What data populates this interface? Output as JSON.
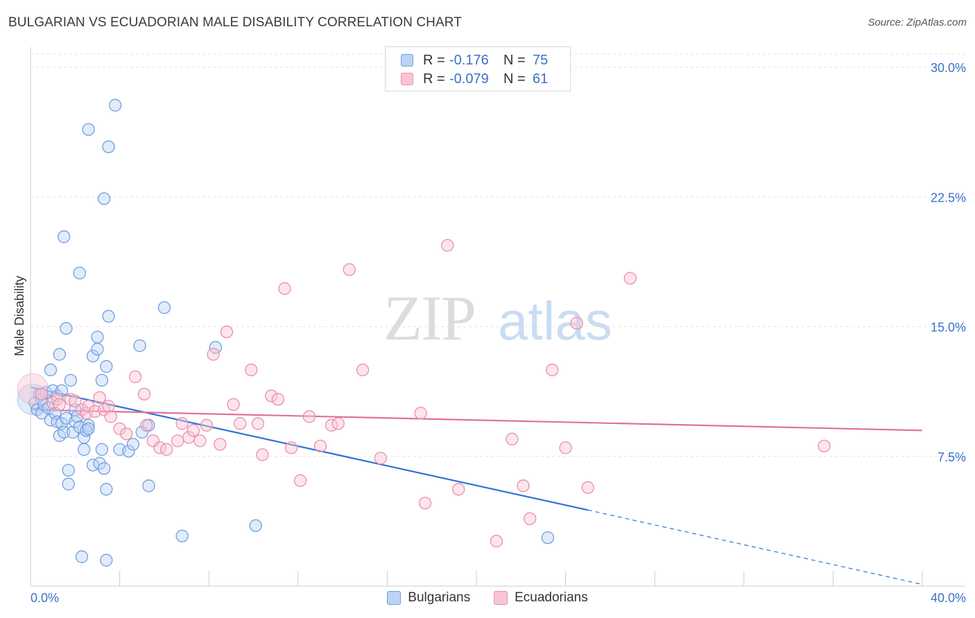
{
  "title": "BULGARIAN VS ECUADORIAN MALE DISABILITY CORRELATION CHART",
  "source": "Source: ZipAtlas.com",
  "watermark": {
    "part1": "ZIP",
    "part2": "atlas"
  },
  "legend_top": [
    {
      "r_label": "R =",
      "r_value": "-0.176",
      "n_label": "N =",
      "n_value": "75",
      "fill": "#bcd3f5",
      "stroke": "#6f9fe0"
    },
    {
      "r_label": "R =",
      "r_value": "-0.079",
      "n_label": "N =",
      "n_value": "61",
      "fill": "#f8c5d5",
      "stroke": "#ea8dab"
    }
  ],
  "legend_bottom": [
    {
      "label": "Bulgarians",
      "fill": "#bcd3f5",
      "stroke": "#6f9fe0"
    },
    {
      "label": "Ecuadorians",
      "fill": "#f8c5d5",
      "stroke": "#ea8dab"
    }
  ],
  "chart_data": {
    "type": "scatter",
    "title": "BULGARIAN VS ECUADORIAN MALE DISABILITY CORRELATION CHART",
    "xlabel": "",
    "ylabel": "Male Disability",
    "xlim": [
      0,
      40
    ],
    "ylim": [
      0,
      30
    ],
    "x_tick_labels": [
      {
        "value": 0,
        "label": "0.0%"
      },
      {
        "value": 40,
        "label": "40.0%"
      }
    ],
    "y_ticks": [
      {
        "value": 7.5,
        "label": "7.5%"
      },
      {
        "value": 15,
        "label": "15.0%"
      },
      {
        "value": 22.5,
        "label": "22.5%"
      },
      {
        "value": 30,
        "label": "30.0%"
      }
    ],
    "x_minor_ticks": [
      4,
      8,
      12,
      16,
      20,
      24,
      28,
      32,
      36,
      40
    ],
    "grid": true,
    "legend_placement": "top-center",
    "series": [
      {
        "name": "Bulgarians",
        "color": "#6f9fe0",
        "fill": "#bcd3f5",
        "line_color": "#2f73d4",
        "trend": {
          "x0": 0,
          "y0": 11.5,
          "x1": 25,
          "y1": 4.4,
          "dash_x1": 40,
          "dash_y1": 0.1
        },
        "points": [
          [
            0.2,
            10.6
          ],
          [
            0.3,
            10.2
          ],
          [
            0.4,
            11.1
          ],
          [
            0.5,
            10.0
          ],
          [
            0.5,
            10.8
          ],
          [
            0.6,
            10.5
          ],
          [
            0.7,
            11.2
          ],
          [
            0.8,
            10.3
          ],
          [
            0.9,
            9.6
          ],
          [
            0.9,
            12.5
          ],
          [
            1.0,
            11.3
          ],
          [
            1.1,
            10.0
          ],
          [
            1.2,
            9.5
          ],
          [
            1.2,
            11.0
          ],
          [
            1.3,
            8.7
          ],
          [
            1.4,
            9.4
          ],
          [
            1.3,
            13.4
          ],
          [
            1.4,
            11.3
          ],
          [
            1.5,
            8.9
          ],
          [
            1.5,
            20.2
          ],
          [
            1.6,
            14.9
          ],
          [
            1.6,
            9.7
          ],
          [
            1.7,
            5.9
          ],
          [
            1.7,
            6.7
          ],
          [
            1.8,
            11.9
          ],
          [
            1.9,
            8.9
          ],
          [
            2.0,
            10.2
          ],
          [
            2.0,
            9.5
          ],
          [
            2.1,
            9.8
          ],
          [
            2.2,
            18.1
          ],
          [
            2.2,
            9.2
          ],
          [
            2.3,
            1.7
          ],
          [
            2.4,
            7.9
          ],
          [
            2.4,
            8.6
          ],
          [
            2.5,
            9.0
          ],
          [
            2.6,
            9.3
          ],
          [
            2.5,
            9.0
          ],
          [
            2.6,
            26.4
          ],
          [
            2.6,
            9.1
          ],
          [
            2.8,
            13.3
          ],
          [
            2.8,
            7.0
          ],
          [
            3.0,
            13.7
          ],
          [
            3.1,
            7.1
          ],
          [
            3.0,
            14.4
          ],
          [
            3.2,
            11.9
          ],
          [
            3.2,
            7.9
          ],
          [
            3.3,
            6.8
          ],
          [
            3.3,
            22.4
          ],
          [
            3.4,
            12.7
          ],
          [
            3.4,
            5.6
          ],
          [
            3.4,
            1.5
          ],
          [
            3.5,
            25.4
          ],
          [
            3.5,
            15.6
          ],
          [
            3.8,
            27.8
          ],
          [
            4.0,
            7.9
          ],
          [
            4.4,
            7.8
          ],
          [
            4.6,
            8.2
          ],
          [
            4.9,
            13.9
          ],
          [
            5.0,
            8.9
          ],
          [
            5.3,
            9.3
          ],
          [
            5.3,
            5.8
          ],
          [
            6.0,
            16.1
          ],
          [
            6.8,
            2.9
          ],
          [
            8.3,
            13.8
          ],
          [
            10.1,
            3.5
          ],
          [
            23.2,
            2.8
          ]
        ],
        "large_points": [
          [
            0.1,
            10.8
          ]
        ]
      },
      {
        "name": "Ecuadorians",
        "color": "#ea8dab",
        "fill": "#f8c5d5",
        "line_color": "#e0709a",
        "trend": {
          "x0": 0,
          "y0": 10.2,
          "x1": 40,
          "y1": 9.0
        },
        "points": [
          [
            0.5,
            11.1
          ],
          [
            1.0,
            10.6
          ],
          [
            1.2,
            10.8
          ],
          [
            1.3,
            10.5
          ],
          [
            1.8,
            10.8
          ],
          [
            2.0,
            10.7
          ],
          [
            2.3,
            10.2
          ],
          [
            2.5,
            10.0
          ],
          [
            2.6,
            10.4
          ],
          [
            2.9,
            10.1
          ],
          [
            3.1,
            10.9
          ],
          [
            3.3,
            10.2
          ],
          [
            3.5,
            10.4
          ],
          [
            3.6,
            9.8
          ],
          [
            4.0,
            9.1
          ],
          [
            4.3,
            8.8
          ],
          [
            4.7,
            12.1
          ],
          [
            5.1,
            11.1
          ],
          [
            5.2,
            9.3
          ],
          [
            5.5,
            8.4
          ],
          [
            5.8,
            8.0
          ],
          [
            6.1,
            7.9
          ],
          [
            6.6,
            8.4
          ],
          [
            6.8,
            9.4
          ],
          [
            7.1,
            8.6
          ],
          [
            7.3,
            9.0
          ],
          [
            7.6,
            8.4
          ],
          [
            7.9,
            9.3
          ],
          [
            8.2,
            13.4
          ],
          [
            8.5,
            8.2
          ],
          [
            8.8,
            14.7
          ],
          [
            9.1,
            10.5
          ],
          [
            9.4,
            9.4
          ],
          [
            9.9,
            12.5
          ],
          [
            10.2,
            9.4
          ],
          [
            10.4,
            7.6
          ],
          [
            10.8,
            11.0
          ],
          [
            11.1,
            10.8
          ],
          [
            11.4,
            17.2
          ],
          [
            11.7,
            8.0
          ],
          [
            12.1,
            6.1
          ],
          [
            12.5,
            9.8
          ],
          [
            13.0,
            8.1
          ],
          [
            13.5,
            9.3
          ],
          [
            13.8,
            9.4
          ],
          [
            14.3,
            18.3
          ],
          [
            14.9,
            12.5
          ],
          [
            15.7,
            7.4
          ],
          [
            17.5,
            10.0
          ],
          [
            17.7,
            4.8
          ],
          [
            18.7,
            19.7
          ],
          [
            19.2,
            5.6
          ],
          [
            20.9,
            2.6
          ],
          [
            21.6,
            8.5
          ],
          [
            22.1,
            5.8
          ],
          [
            22.4,
            3.9
          ],
          [
            23.4,
            12.5
          ],
          [
            24.0,
            8.0
          ],
          [
            24.5,
            15.2
          ],
          [
            25.0,
            5.7
          ],
          [
            26.9,
            17.8
          ],
          [
            35.6,
            8.1
          ]
        ],
        "large_points": [
          [
            0.1,
            11.4
          ]
        ]
      }
    ]
  }
}
